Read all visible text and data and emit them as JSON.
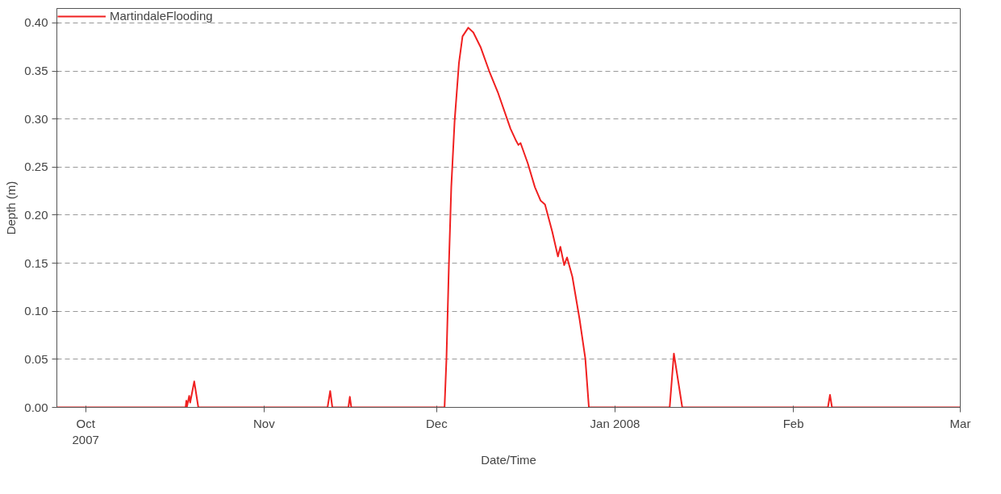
{
  "chart_data": {
    "type": "line",
    "xlabel": "Date/Time",
    "ylabel": "Depth (m)",
    "legend": "top left",
    "grid": "y",
    "marker": "none",
    "line_style": "solid",
    "xlim": [
      "2007-09-26",
      "2008-03-01"
    ],
    "xticks": [
      {
        "value": "2007-10-01",
        "label": "Oct\n2007"
      },
      {
        "value": "2007-11-01",
        "label": "Nov"
      },
      {
        "value": "2007-12-01",
        "label": "Dec"
      },
      {
        "value": "2008-01-01",
        "label": "Jan 2008"
      },
      {
        "value": "2008-02-01",
        "label": "Feb"
      },
      {
        "value": "2008-03-01",
        "label": "Mar"
      }
    ],
    "ylim": [
      0,
      0.415
    ],
    "yticks": [
      {
        "value": 0,
        "label": "0.00"
      },
      {
        "value": 0.05,
        "label": "0.05"
      },
      {
        "value": 0.1,
        "label": "0.10"
      },
      {
        "value": 0.15,
        "label": "0.15"
      },
      {
        "value": 0.2,
        "label": "0.20"
      },
      {
        "value": 0.25,
        "label": "0.25"
      },
      {
        "value": 0.3,
        "label": "0.30"
      },
      {
        "value": 0.35,
        "label": "0.35"
      },
      {
        "value": 0.4,
        "label": "0.40"
      }
    ],
    "series": [
      {
        "name": "MartindaleFlooding",
        "color": "#f02020",
        "x": [
          "2007-09-26T00:00",
          "2007-10-18T09:00",
          "2007-10-18T12:00",
          "2007-10-18T15:00",
          "2007-10-19T00:00",
          "2007-10-19T04:00",
          "2007-10-19T21:00",
          "2007-10-20T14:00",
          "2007-11-12T01:00",
          "2007-11-12T12:00",
          "2007-11-12T21:00",
          "2007-11-15T16:00",
          "2007-11-15T22:00",
          "2007-11-16T04:00",
          "2007-12-02T09:00",
          "2007-12-02T17:00",
          "2007-12-03T03:00",
          "2007-12-03T13:00",
          "2007-12-04T03:00",
          "2007-12-04T21:00",
          "2007-12-05T12:00",
          "2007-12-06T12:00",
          "2007-12-07T09:00",
          "2007-12-08T15:00",
          "2007-12-10T03:00",
          "2007-12-11T15:00",
          "2007-12-13T20:00",
          "2007-12-14T20:00",
          "2007-12-15T05:00",
          "2007-12-15T14:00",
          "2007-12-16T20:00",
          "2007-12-18T02:00",
          "2007-12-19T02:00",
          "2007-12-19T20:00",
          "2007-12-21T02:00",
          "2007-12-22T02:00",
          "2007-12-22T12:00",
          "2007-12-23T04:00",
          "2007-12-23T16:00",
          "2007-12-24T14:00",
          "2007-12-25T20:00",
          "2007-12-26T20:00",
          "2007-12-27T11:00",
          "2008-01-10T12:00",
          "2008-01-11T05:30",
          "2008-01-12T16:30",
          "2008-02-07T00:00",
          "2008-02-07T08:40",
          "2008-02-07T17:00",
          "2008-03-01T00:00"
        ],
        "values": [
          0,
          0,
          0.007,
          0.001,
          0.012,
          0.005,
          0.027,
          0,
          0,
          0.017,
          0,
          0,
          0.011,
          0,
          0,
          0.051,
          0.147,
          0.229,
          0.298,
          0.358,
          0.386,
          0.395,
          0.39,
          0.375,
          0.35,
          0.328,
          0.29,
          0.277,
          0.273,
          0.275,
          0.254,
          0.229,
          0.215,
          0.211,
          0.183,
          0.157,
          0.167,
          0.148,
          0.156,
          0.136,
          0.092,
          0.051,
          0,
          0,
          0.056,
          0,
          0,
          0.013,
          0,
          0
        ]
      }
    ]
  }
}
